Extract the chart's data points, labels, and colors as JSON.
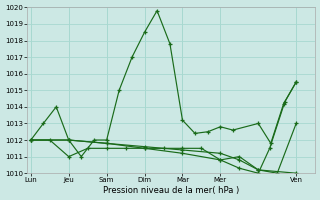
{
  "xlabel": "Pression niveau de la mer( hPa )",
  "ylim": [
    1010,
    1020
  ],
  "yticks": [
    1010,
    1011,
    1012,
    1013,
    1014,
    1015,
    1016,
    1017,
    1018,
    1019,
    1020
  ],
  "xtick_labels": [
    "Lun",
    "Jeu",
    "Sam",
    "Dim",
    "Mar",
    "Mer",
    "Ven"
  ],
  "xtick_positions": [
    0,
    1,
    2,
    3,
    4,
    5,
    7
  ],
  "xlim": [
    -0.1,
    7.5
  ],
  "bg_color": "#cce8e4",
  "grid_color": "#a8d8d0",
  "line_color": "#1a6b1a",
  "lines": [
    {
      "x": [
        0,
        0.33,
        0.67,
        1.0,
        1.33,
        1.67,
        2.0,
        2.33,
        2.67,
        3.0,
        3.33,
        3.67,
        4.0,
        4.33,
        4.67,
        5.0,
        5.33,
        6.0,
        6.33,
        6.67,
        7.0
      ],
      "y": [
        1012,
        1013,
        1014,
        1012,
        1011,
        1012,
        1012,
        1015,
        1017,
        1018.5,
        1019.8,
        1017.8,
        1013.2,
        1012.4,
        1012.5,
        1012.8,
        1012.6,
        1013.0,
        1011.8,
        1014.2,
        1015.5
      ]
    },
    {
      "x": [
        0,
        0.5,
        1.0,
        1.5,
        2.0,
        2.5,
        3.0,
        3.5,
        4.0,
        4.5,
        5.0,
        5.5,
        6.0,
        7.0
      ],
      "y": [
        1012,
        1012,
        1011,
        1011.5,
        1011.5,
        1011.5,
        1011.5,
        1011.5,
        1011.5,
        1011.5,
        1010.8,
        1011.0,
        1010.2,
        1010.0
      ]
    },
    {
      "x": [
        0,
        1.0,
        2.0,
        3.0,
        4.0,
        5.0,
        5.5,
        6.0,
        6.5,
        7.0
      ],
      "y": [
        1012,
        1012,
        1011.8,
        1011.6,
        1011.4,
        1011.2,
        1010.8,
        1010.2,
        1010.0,
        1013.0
      ]
    },
    {
      "x": [
        0,
        1.0,
        2.0,
        3.0,
        4.0,
        5.0,
        5.5,
        6.0,
        6.3,
        6.7,
        7.0
      ],
      "y": [
        1012,
        1012,
        1011.8,
        1011.5,
        1011.2,
        1010.8,
        1010.3,
        1010.0,
        1011.5,
        1014.3,
        1015.5
      ]
    }
  ]
}
